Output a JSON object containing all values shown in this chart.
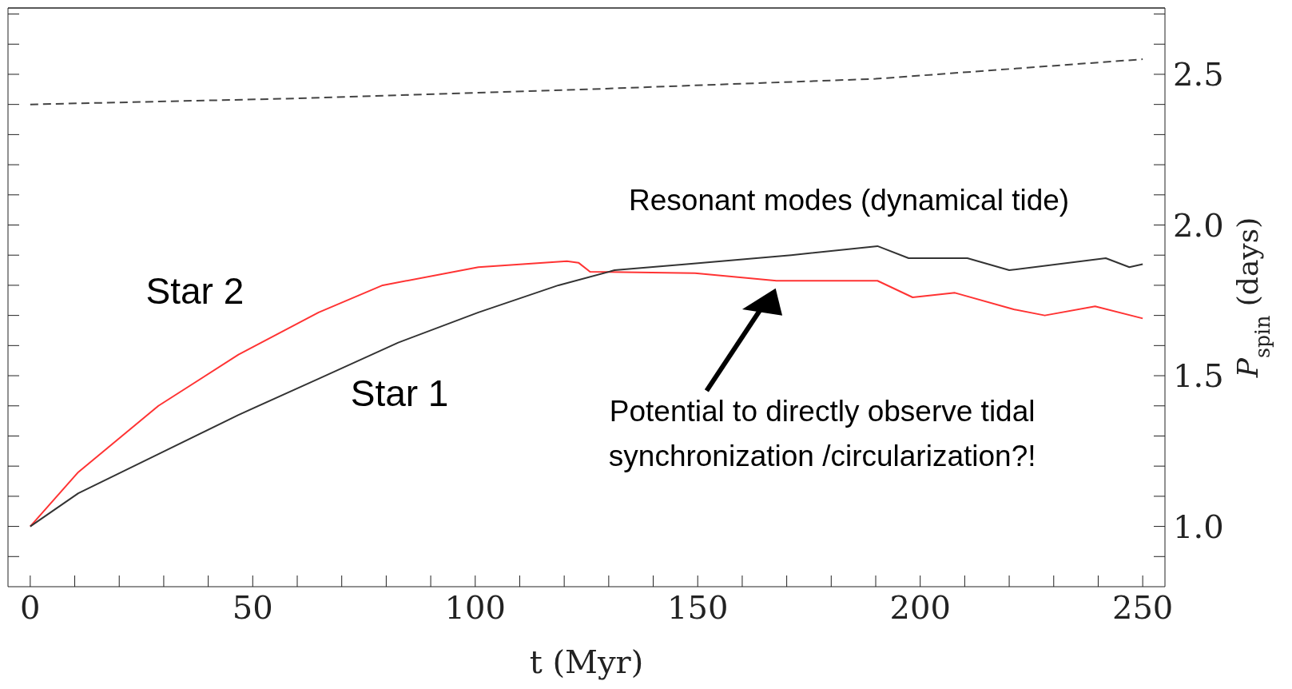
{
  "chart_data": {
    "type": "line",
    "xlabel": "t (Myr)",
    "ylabel": "P$_{spin}$ (days)",
    "xlim": [
      -5,
      255
    ],
    "ylim": [
      0.8,
      2.72
    ],
    "xticks": [
      0,
      {
        "value": 10,
        "label": null
      },
      {
        "value": 20,
        "label": null
      },
      {
        "value": 30,
        "label": null
      },
      {
        "value": 40,
        "label": null
      },
      50,
      {
        "value": 60,
        "label": null
      },
      {
        "value": 70,
        "label": null
      },
      {
        "value": 80,
        "label": null
      },
      {
        "value": 90,
        "label": null
      },
      100,
      {
        "value": 110,
        "label": null
      },
      {
        "value": 120,
        "label": null
      },
      {
        "value": 130,
        "label": null
      },
      {
        "value": 140,
        "label": null
      },
      150,
      {
        "value": 160,
        "label": null
      },
      {
        "value": 170,
        "label": null
      },
      {
        "value": 180,
        "label": null
      },
      {
        "value": 190,
        "label": null
      },
      200,
      {
        "value": 210,
        "label": null
      },
      {
        "value": 220,
        "label": null
      },
      {
        "value": 230,
        "label": null
      },
      {
        "value": 240,
        "label": null
      },
      250
    ],
    "yticks": [
      {
        "value": 0.9,
        "label": null
      },
      {
        "value": 1.0,
        "label": "1.0"
      },
      {
        "value": 1.1,
        "label": null
      },
      {
        "value": 1.2,
        "label": null
      },
      {
        "value": 1.3,
        "label": null
      },
      {
        "value": 1.4,
        "label": null
      },
      {
        "value": 1.5,
        "label": "1.5"
      },
      {
        "value": 1.6,
        "label": null
      },
      {
        "value": 1.7,
        "label": null
      },
      {
        "value": 1.8,
        "label": null
      },
      {
        "value": 1.9,
        "label": null
      },
      {
        "value": 2.0,
        "label": "2.0"
      },
      {
        "value": 2.1,
        "label": null
      },
      {
        "value": 2.2,
        "label": null
      },
      {
        "value": 2.3,
        "label": null
      },
      {
        "value": 2.4,
        "label": null
      },
      {
        "value": 2.5,
        "label": "2.5"
      },
      {
        "value": 2.6,
        "label": null
      },
      {
        "value": 2.7,
        "label": null
      }
    ],
    "marker": "none",
    "series": [
      {
        "name": "Star 2",
        "color": "#ff3333",
        "line_style": "solid",
        "x": [
          0,
          10.8,
          28.8,
          46.8,
          64.8,
          79.2,
          100.7,
          120.6,
          123.2,
          125.8,
          149.4,
          167.7,
          190.4,
          198.3,
          207.8,
          221,
          228,
          239.3,
          250
        ],
        "values": [
          1.0,
          1.18,
          1.4,
          1.57,
          1.71,
          1.8,
          1.86,
          1.88,
          1.875,
          1.845,
          1.84,
          1.815,
          1.815,
          1.76,
          1.775,
          1.72,
          1.7,
          1.73,
          1.69
        ]
      },
      {
        "name": "Star 1",
        "color": "#333333",
        "line_style": "solid",
        "x": [
          0,
          10.8,
          28.8,
          46.8,
          64.8,
          82.7,
          100.7,
          118.7,
          131.3,
          147.5,
          171,
          190.4,
          197.4,
          210.6,
          220,
          241.7,
          247,
          250
        ],
        "values": [
          1.0,
          1.11,
          1.24,
          1.37,
          1.49,
          1.61,
          1.71,
          1.8,
          1.85,
          1.87,
          1.9,
          1.93,
          1.89,
          1.89,
          1.85,
          1.89,
          1.86,
          1.87
        ]
      },
      {
        "color": "#444444",
        "line_style": "dashed",
        "x": [
          0,
          60,
          125,
          190,
          250
        ],
        "values": [
          2.4,
          2.42,
          2.45,
          2.485,
          2.55
        ]
      }
    ],
    "annotations": [
      "Resonant modes (dynamical tide)",
      "Potential to directly observe tidal synchronization /circularization?!"
    ]
  }
}
